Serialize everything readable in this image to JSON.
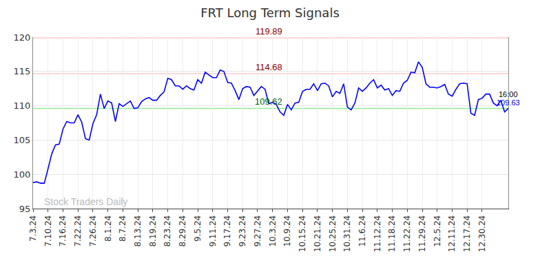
{
  "chart_data": {
    "type": "line",
    "title": "FRT Long Term Signals",
    "watermark": "Stock Traders Daily",
    "categories": [
      "7.3.24",
      null,
      null,
      null,
      "7.10.24",
      null,
      null,
      null,
      "7.16.24",
      null,
      null,
      null,
      "7.22.24",
      null,
      null,
      null,
      "7.26.24",
      null,
      null,
      null,
      "8.1.24",
      null,
      null,
      null,
      "8.7.24",
      null,
      null,
      null,
      "8.13.24",
      null,
      null,
      null,
      "8.19.24",
      null,
      null,
      null,
      "8.23.24",
      null,
      null,
      null,
      "8.29.24",
      null,
      null,
      null,
      "9.5.24",
      null,
      null,
      null,
      "9.11.24",
      null,
      null,
      null,
      "9.17.24",
      null,
      null,
      null,
      "9.23.24",
      null,
      null,
      null,
      "9.27.24",
      null,
      null,
      null,
      "10.3.24",
      null,
      null,
      null,
      "10.9.24",
      null,
      null,
      null,
      "10.15.24",
      null,
      null,
      null,
      "10.21.24",
      null,
      null,
      null,
      "10.25.24",
      null,
      null,
      null,
      "10.31.24",
      null,
      null,
      null,
      "11.6.24",
      null,
      null,
      null,
      "11.12.24",
      null,
      null,
      null,
      "11.18.24",
      null,
      null,
      null,
      "11.22.24",
      null,
      null,
      null,
      "11.29.24",
      null,
      null,
      null,
      "12.5.24",
      null,
      null,
      null,
      "12.11.24",
      null,
      null,
      null,
      "12.17.24",
      null,
      null,
      null,
      "12.30.24",
      null,
      null,
      null,
      null,
      null,
      null,
      null
    ],
    "values": [
      98.8,
      98.9,
      98.7,
      98.7,
      100.8,
      103,
      104.3,
      104.4,
      106.6,
      107.7,
      107.5,
      107.5,
      108.7,
      107.6,
      105.2,
      105,
      107.4,
      108.7,
      111.7,
      109.6,
      110.7,
      110.4,
      107.7,
      110.3,
      109.9,
      110.3,
      110.7,
      109.6,
      109.7,
      110.6,
      111,
      111.2,
      110.8,
      110.8,
      111.5,
      112,
      114,
      113.8,
      112.9,
      112.9,
      112.4,
      112.9,
      112.5,
      112.3,
      113.8,
      113.3,
      114.9,
      114.5,
      114.1,
      114.1,
      115.2,
      115,
      113.4,
      113.3,
      112.2,
      110.9,
      112.5,
      112.8,
      112.7,
      111.5,
      112.1,
      112.8,
      112.4,
      110.3,
      110.5,
      110.2,
      109.1,
      108.6,
      110.2,
      109.4,
      110.4,
      110.5,
      112.1,
      112.4,
      112.4,
      113.2,
      112.2,
      113.2,
      113.3,
      112.9,
      111.3,
      112.1,
      111.8,
      113.2,
      109.8,
      109.4,
      110.4,
      112.6,
      112.1,
      112.6,
      113.3,
      113.8,
      112.6,
      113,
      112.3,
      112.5,
      111.5,
      112.2,
      112.1,
      113.3,
      113.7,
      114.9,
      114.8,
      116.4,
      115.6,
      113.2,
      112.7,
      112.7,
      112.6,
      112.8,
      113.1,
      111.7,
      111.4,
      112.4,
      113.2,
      113.3,
      113.2,
      108.9,
      108.6,
      110.9,
      111.1,
      111.7,
      111.7,
      110.4,
      110,
      110.8,
      109.1,
      109.63
    ],
    "color": "#0000ff",
    "ylim": [
      95,
      120
    ],
    "yticks": [
      95,
      100,
      105,
      110,
      115,
      120
    ],
    "grid": true,
    "reference_lines": [
      {
        "value": 119.89,
        "color": "#ffc8c8",
        "label_color": "#8b0000"
      },
      {
        "value": 114.68,
        "color": "#ffc8c8",
        "label_color": "#8b0000"
      },
      {
        "value": 109.62,
        "color": "#90ee90",
        "label_color": "#006400"
      }
    ],
    "last_label": {
      "time": "16:00",
      "value": 109.63,
      "color": "#0000ff"
    }
  }
}
